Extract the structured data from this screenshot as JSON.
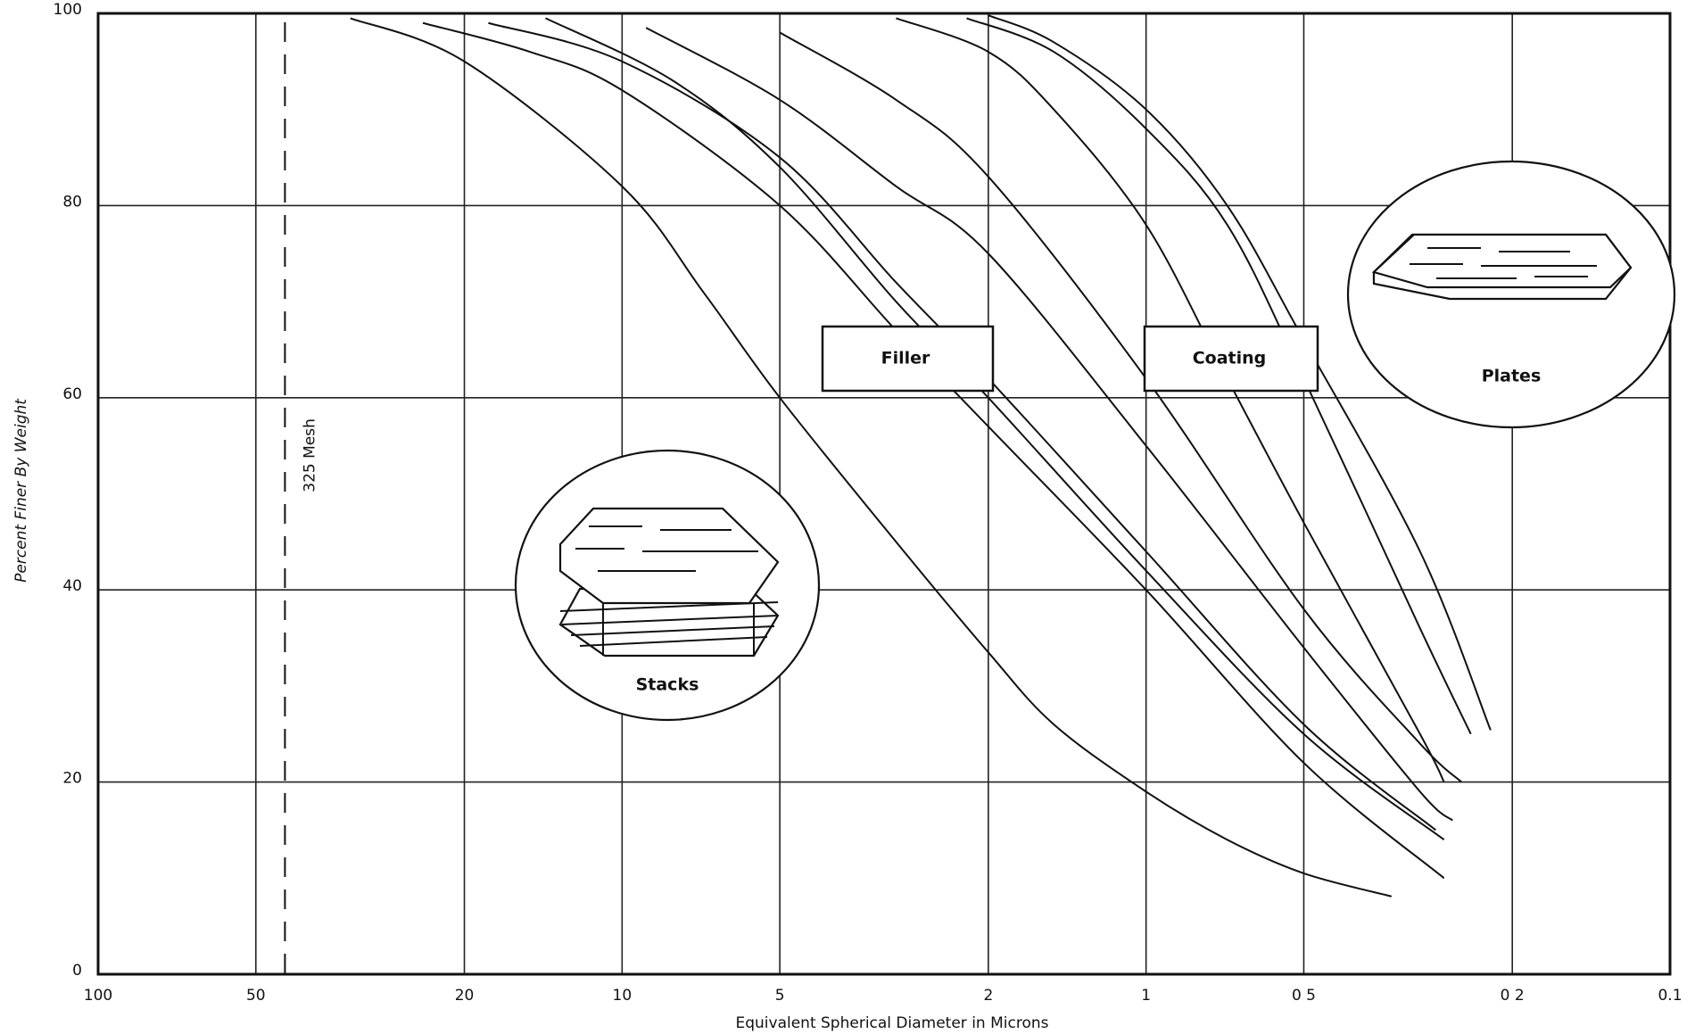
{
  "chart_data": {
    "type": "line",
    "x_label": "Equivalent Spherical Diameter in Microns",
    "y_label": "Percent Finer By Weight",
    "annotations": [
      "Filler",
      "Coating",
      "Plates",
      "Stacks",
      "325 Mesh"
    ],
    "mesh_line": 44,
    "log_x": true,
    "grid": true,
    "color": "#111111",
    "xlim": [
      100,
      0.1
    ],
    "xticks": [
      100,
      50,
      20,
      10,
      5,
      2,
      1,
      {
        "value": 0.5,
        "label": "0 5"
      },
      {
        "value": 0.2,
        "label": "0 2"
      },
      0.1
    ],
    "ylim": [
      0,
      100
    ],
    "yticks": [
      0,
      20,
      40,
      60,
      80,
      100
    ],
    "series": [
      {
        "color": "#111111",
        "x": [
          33,
          20,
          10,
          7,
          5,
          3,
          2,
          1.5,
          1,
          0.7,
          0.5,
          0.34
        ],
        "values": [
          99.5,
          95,
          82,
          71,
          60,
          45,
          33.5,
          26,
          19,
          14,
          10.5,
          8.1
        ]
      },
      {
        "color": "#111111",
        "x": [
          24,
          15,
          10,
          5,
          3,
          2,
          1,
          0.5,
          0.27
        ],
        "values": [
          99,
          96,
          92,
          80,
          67,
          57,
          40,
          22,
          10
        ]
      },
      {
        "color": "#111111",
        "x": [
          18,
          10,
          5,
          3,
          2,
          1,
          0.5,
          0.28
        ],
        "values": [
          99,
          95,
          85,
          72,
          62,
          44,
          26,
          15
        ]
      },
      {
        "color": "#111111",
        "x": [
          14,
          8,
          5,
          3,
          2,
          1,
          0.5,
          0.27
        ],
        "values": [
          99.5,
          93,
          84,
          70,
          60,
          42,
          25,
          14
        ]
      },
      {
        "color": "#111111",
        "x": [
          9,
          5,
          3,
          2,
          1,
          0.5,
          0.3,
          0.26
        ],
        "values": [
          98.5,
          91,
          82,
          75,
          55,
          34,
          19,
          16
        ]
      },
      {
        "color": "#111111",
        "x": [
          5,
          3,
          2,
          1,
          0.5,
          0.3,
          0.25
        ],
        "values": [
          98,
          91,
          83,
          62,
          38,
          24,
          20
        ]
      },
      {
        "color": "#111111",
        "x": [
          3,
          2,
          1.5,
          1,
          0.7,
          0.5,
          0.3,
          0.27
        ],
        "values": [
          99.5,
          96,
          90,
          78,
          62,
          47,
          25,
          20
        ]
      },
      {
        "color": "#111111",
        "x": [
          2.2,
          1.5,
          1,
          0.7,
          0.5,
          0.3,
          0.24
        ],
        "values": [
          99.5,
          96,
          88,
          78,
          62,
          36,
          25
        ]
      },
      {
        "color": "#111111",
        "x": [
          2,
          1.5,
          1,
          0.7,
          0.5,
          0.3,
          0.22
        ],
        "values": [
          99.8,
          97,
          90,
          80,
          66,
          44,
          25.4
        ]
      }
    ]
  }
}
